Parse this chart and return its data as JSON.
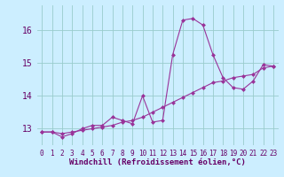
{
  "xlabel": "Windchill (Refroidissement éolien,°C)",
  "x": [
    0,
    1,
    2,
    3,
    4,
    5,
    6,
    7,
    8,
    9,
    10,
    11,
    12,
    13,
    14,
    15,
    16,
    17,
    18,
    19,
    20,
    21,
    22,
    23
  ],
  "line1": [
    12.9,
    12.9,
    12.75,
    12.85,
    13.0,
    13.1,
    13.1,
    13.35,
    13.25,
    13.15,
    14.0,
    13.2,
    13.25,
    15.25,
    16.3,
    16.35,
    16.15,
    15.25,
    14.55,
    14.25,
    14.2,
    14.45,
    14.95,
    14.9
  ],
  "line2": [
    12.9,
    12.9,
    12.85,
    12.9,
    12.95,
    13.0,
    13.05,
    13.1,
    13.2,
    13.25,
    13.35,
    13.5,
    13.65,
    13.8,
    13.95,
    14.1,
    14.25,
    14.4,
    14.45,
    14.55,
    14.6,
    14.65,
    14.85,
    14.9
  ],
  "line_color": "#993399",
  "bg_color": "#cceeff",
  "grid_color": "#99cccc",
  "ylim": [
    12.5,
    16.75
  ],
  "yticks": [
    13,
    14,
    15,
    16
  ],
  "xlim": [
    -0.5,
    23.5
  ],
  "xticks": [
    0,
    1,
    2,
    3,
    4,
    5,
    6,
    7,
    8,
    9,
    10,
    11,
    12,
    13,
    14,
    15,
    16,
    17,
    18,
    19,
    20,
    21,
    22,
    23
  ],
  "marker": "D",
  "markersize": 2.0,
  "linewidth": 0.8,
  "xlabel_fontsize": 6.5,
  "ytick_fontsize": 7,
  "xtick_fontsize": 5.5,
  "xlabel_color": "#660066",
  "tick_color": "#660066"
}
